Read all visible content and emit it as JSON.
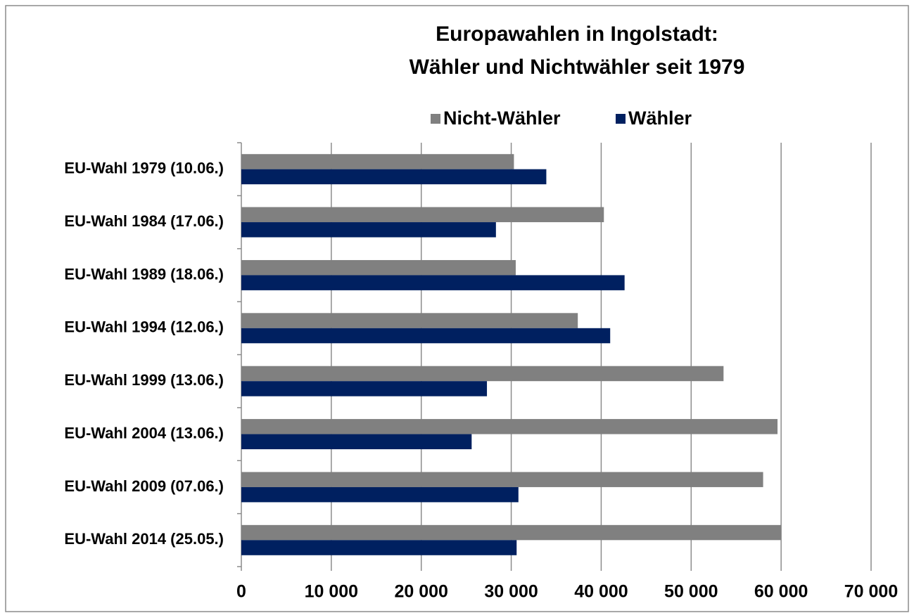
{
  "chart_data": {
    "type": "bar",
    "orientation": "horizontal",
    "title": [
      "Europawahlen in Ingolstadt:",
      "Wähler und Nichtwähler seit 1979"
    ],
    "categories": [
      "EU-Wahl 1979 (10.06.)",
      "EU-Wahl 1984 (17.06.)",
      "EU-Wahl 1989 (18.06.)",
      "EU-Wahl 1994 (12.06.)",
      "EU-Wahl 1999 (13.06.)",
      "EU-Wahl 2004 (13.06.)",
      "EU-Wahl 2009 (07.06.)",
      "EU-Wahl 2014 (25.05.)"
    ],
    "series": [
      {
        "name": "Nicht-Wähler",
        "color": "#808080",
        "values": [
          30300,
          40300,
          30500,
          37400,
          53600,
          59600,
          58000,
          60000
        ]
      },
      {
        "name": "Wähler",
        "color": "#002060",
        "values": [
          33900,
          28300,
          42600,
          41000,
          27300,
          25600,
          30800,
          30600
        ]
      }
    ],
    "xlim": [
      0,
      70000
    ],
    "xticks": [
      0,
      {
        "value": 10000,
        "label": "10 000"
      },
      {
        "value": 20000,
        "label": "20 000"
      },
      {
        "value": 30000,
        "label": "30 000"
      },
      {
        "value": 40000,
        "label": "40 000"
      },
      {
        "value": 50000,
        "label": "50 000"
      },
      {
        "value": 60000,
        "label": "60 000"
      },
      {
        "value": 70000,
        "label": "70 000"
      }
    ],
    "grid": true,
    "legend": "top"
  }
}
